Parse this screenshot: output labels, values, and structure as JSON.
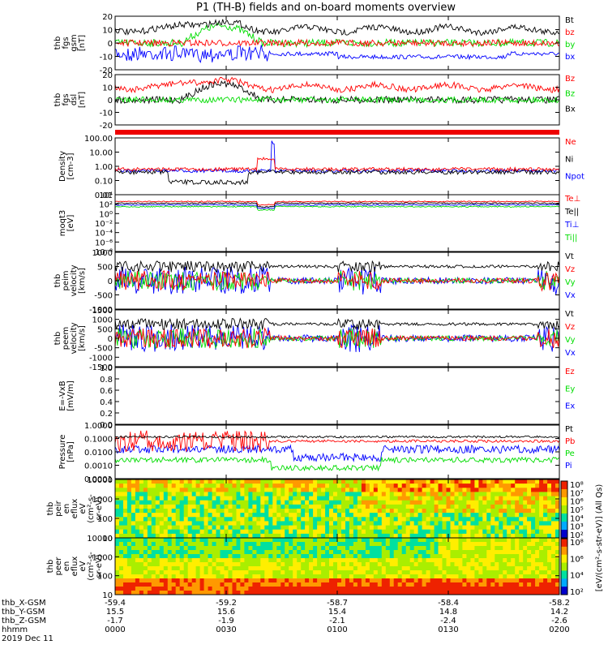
{
  "title": "P1 (TH-B) fields and on-board moments overview",
  "chart_data": [
    {
      "type": "line",
      "panel": "fgs_gsm",
      "ylabel": [
        "thb",
        "fgs",
        "gsm",
        "[nT]"
      ],
      "ylim": [
        -20,
        20
      ],
      "yticks": [
        "20",
        "10",
        "0",
        "-10",
        "-20"
      ],
      "series": [
        {
          "name": "Bt",
          "color": "#000000"
        },
        {
          "name": "bz",
          "color": "#ff0000"
        },
        {
          "name": "by",
          "color": "#00dd00"
        },
        {
          "name": "bx",
          "color": "#0000ff"
        }
      ]
    },
    {
      "type": "line",
      "panel": "fgs_dsl",
      "ylabel": [
        "thb",
        "fgs",
        "dsl",
        "[nT]"
      ],
      "ylim": [
        -20,
        20
      ],
      "yticks": [
        "20",
        "10",
        "0",
        "-10",
        "-20"
      ],
      "series": [
        {
          "name": "Bz",
          "color": "#ff0000"
        },
        {
          "name": "Bz",
          "color": "#00dd00"
        },
        {
          "name": "Bx",
          "color": "#000000"
        }
      ]
    },
    {
      "type": "line",
      "panel": "density",
      "ylabel": [
        "Density",
        "[cm-3]"
      ],
      "ylim": [
        0.01,
        100
      ],
      "scale": "log",
      "yticks": [
        "100.00",
        "10.00",
        "1.00",
        "0.10",
        "0.01"
      ],
      "series": [
        {
          "name": "Ne",
          "color": "#ff0000"
        },
        {
          "name": "Ni",
          "color": "#000000"
        },
        {
          "name": "Npot",
          "color": "#0000ff"
        }
      ]
    },
    {
      "type": "line",
      "panel": "temperature",
      "ylabel": [
        "moqt3",
        "[eV]"
      ],
      "scale": "log",
      "yticks": [
        "10⁴",
        "10²",
        "10⁰",
        "10⁻²",
        "10⁻⁴",
        "10⁻⁶",
        "10⁻⁸"
      ],
      "series": [
        {
          "name": "Te⊥",
          "color": "#ff0000"
        },
        {
          "name": "Te||",
          "color": "#000000"
        },
        {
          "name": "Ti⊥",
          "color": "#0000ff"
        },
        {
          "name": "Ti||",
          "color": "#00dd00"
        }
      ]
    },
    {
      "type": "line",
      "panel": "peim_velocity",
      "ylabel": [
        "thb",
        "peim",
        "velocity",
        "[km/s]"
      ],
      "ylim": [
        -1000,
        1000
      ],
      "yticks": [
        "1000",
        "500",
        "0",
        "-500",
        "-1000"
      ],
      "series": [
        {
          "name": "Vt",
          "color": "#000000"
        },
        {
          "name": "Vz",
          "color": "#ff0000"
        },
        {
          "name": "Vy",
          "color": "#00dd00"
        },
        {
          "name": "Vx",
          "color": "#0000ff"
        }
      ]
    },
    {
      "type": "line",
      "panel": "peem_velocity",
      "ylabel": [
        "thb",
        "peem",
        "velocity",
        "[km/s]"
      ],
      "ylim": [
        -1500,
        1500
      ],
      "yticks": [
        "1500",
        "1000",
        "500",
        "0",
        "-500",
        "-1000",
        "-1500"
      ],
      "series": [
        {
          "name": "Vt",
          "color": "#000000"
        },
        {
          "name": "Vz",
          "color": "#ff0000"
        },
        {
          "name": "Vy",
          "color": "#00dd00"
        },
        {
          "name": "Vx",
          "color": "#0000ff"
        }
      ]
    },
    {
      "type": "line",
      "panel": "efield",
      "ylabel": [
        "E=-VxB",
        "[mV/m]"
      ],
      "ylim": [
        0,
        1
      ],
      "yticks": [
        "1.0",
        "0.8",
        "0.6",
        "0.4",
        "0.2",
        "0.0"
      ],
      "series": [
        {
          "name": "Ez",
          "color": "#ff0000"
        },
        {
          "name": "Ey",
          "color": "#00dd00"
        },
        {
          "name": "Ex",
          "color": "#0000ff"
        }
      ]
    },
    {
      "type": "line",
      "panel": "pressure",
      "ylabel": [
        "Pressure",
        "[nPa]"
      ],
      "ylim": [
        0.0001,
        1
      ],
      "scale": "log",
      "yticks": [
        "1.0000",
        "0.1000",
        "0.0100",
        "0.0010",
        "0.0001"
      ],
      "series": [
        {
          "name": "Pt",
          "color": "#000000"
        },
        {
          "name": "Pb",
          "color": "#ff0000"
        },
        {
          "name": "Pe",
          "color": "#00dd00"
        },
        {
          "name": "Pi",
          "color": "#0000ff"
        }
      ]
    },
    {
      "type": "heatmap",
      "panel": "peir",
      "ylabel": [
        "thb",
        "peir",
        "en",
        "eflux",
        "eV",
        "(cm²-s-",
        "sr-eV)"
      ],
      "scale": "log",
      "yticks": [
        "10000",
        "1000",
        "100",
        "10"
      ]
    },
    {
      "type": "heatmap",
      "panel": "peer",
      "ylabel": [
        "thb",
        "peer",
        "en",
        "eflux",
        "eV",
        "(cm²-s-",
        "sr-eV)"
      ],
      "scale": "log",
      "yticks": [
        "10000",
        "1000",
        "100",
        "10"
      ]
    }
  ],
  "colorbar": {
    "ticks_top": [
      "10⁸",
      "10⁷",
      "10⁶",
      "10⁵",
      "10⁴",
      "10³",
      "10²"
    ],
    "ticks_bottom": [
      "10⁸",
      "10⁶",
      "10⁴",
      "10²"
    ],
    "label": "[eV/(cm²-s-str-eV)] (All Qs)"
  },
  "xaxis": {
    "rows": [
      {
        "label": "thb_X-GSM",
        "values": [
          "-59.4",
          "-59.2",
          "-58.7",
          "-58.4",
          "-58.2"
        ]
      },
      {
        "label": "thb_Y-GSM",
        "values": [
          "15.5",
          "15.6",
          "15.4",
          "14.8",
          "14.2"
        ]
      },
      {
        "label": "thb_Z-GSM",
        "values": [
          "-1.7",
          "-1.9",
          "-2.1",
          "-2.4",
          "-2.6"
        ]
      },
      {
        "label": "hhmm",
        "values": [
          "0000",
          "0030",
          "0100",
          "0130",
          "0200"
        ]
      }
    ],
    "date": "2019 Dec 11"
  }
}
